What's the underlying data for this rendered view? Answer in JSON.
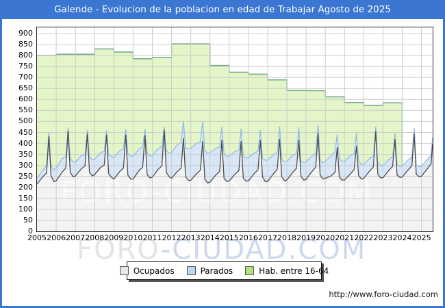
{
  "window": {
    "title": "Galende - Evolucion de la poblacion en edad de Trabajar Agosto de 2025"
  },
  "footer": {
    "url": "http://www.foro-ciudad.com"
  },
  "watermark": {
    "plot_text": "FORO-CIUDAD.COM",
    "footer_gray": "FORO",
    "footer_blue": "-CIUDAD.COM"
  },
  "colors": {
    "titlebar": "#3a76d2",
    "frame_border": "#3a76d2",
    "grid": "#cccccc",
    "plot_border": "#222222",
    "hab_fill": "#e4f6c8",
    "hab_line": "#6fa589",
    "parados_fill": "#d8e7f7",
    "parados_line": "#94bce4",
    "ocupados_fill": "#f3f3f3",
    "ocupados_line": "#4d4d4d",
    "swatch_ocupados": "#e8e8e8",
    "swatch_parados": "#bdd7f0",
    "swatch_hab": "#b2e27e"
  },
  "legend": {
    "items": [
      {
        "label": "Ocupados",
        "swatch": "#e8e8e8"
      },
      {
        "label": "Parados",
        "swatch": "#bdd7f0"
      },
      {
        "label": "Hab. entre 16-64",
        "swatch": "#b2e27e"
      }
    ]
  },
  "chart_data": {
    "type": "area",
    "title": "Galende - Evolucion de la poblacion en edad de Trabajar Agosto de 2025",
    "xlabel": "",
    "ylabel": "",
    "ylim": [
      0,
      925
    ],
    "ytick_step": 50,
    "y_ticks": [
      0,
      50,
      100,
      150,
      200,
      250,
      300,
      350,
      400,
      450,
      500,
      550,
      600,
      650,
      700,
      750,
      800,
      850,
      900
    ],
    "x_tick_years": [
      2005,
      2006,
      2007,
      2008,
      2009,
      2010,
      2011,
      2012,
      2013,
      2014,
      2015,
      2016,
      2017,
      2018,
      2019,
      2020,
      2021,
      2022,
      2023,
      2024,
      2025
    ],
    "x_min": 2005,
    "x_max": 2025.583,
    "grid": true,
    "legend_position": "bottom",
    "hab_16_64": {
      "name": "Hab. entre 16-64",
      "kind": "step-area-yearly",
      "end_x": 2024.0,
      "steps": [
        [
          2005,
          800
        ],
        [
          2006,
          806
        ],
        [
          2007,
          806
        ],
        [
          2008,
          830
        ],
        [
          2009,
          816
        ],
        [
          2010,
          785
        ],
        [
          2011,
          790
        ],
        [
          2012,
          853
        ],
        [
          2013,
          853
        ],
        [
          2014,
          755
        ],
        [
          2015,
          724
        ],
        [
          2016,
          715
        ],
        [
          2017,
          689
        ],
        [
          2018,
          641
        ],
        [
          2019,
          640
        ],
        [
          2020,
          612
        ],
        [
          2021,
          586
        ],
        [
          2022,
          573
        ],
        [
          2023,
          585
        ]
      ]
    },
    "x_monthly_anchors": [
      2005.0,
      2005.3,
      2005.5,
      2005.62,
      2005.73,
      2005.88,
      2006.0,
      2006.3,
      2006.5,
      2006.62,
      2006.73,
      2006.88,
      2007.0,
      2007.3,
      2007.5,
      2007.62,
      2007.73,
      2007.88,
      2008.0,
      2008.3,
      2008.5,
      2008.62,
      2008.73,
      2008.88,
      2009.0,
      2009.3,
      2009.5,
      2009.62,
      2009.73,
      2009.88,
      2010.0,
      2010.3,
      2010.5,
      2010.62,
      2010.73,
      2010.88,
      2011.0,
      2011.3,
      2011.5,
      2011.62,
      2011.73,
      2011.88,
      2012.0,
      2012.3,
      2012.5,
      2012.62,
      2012.73,
      2012.88,
      2013.0,
      2013.3,
      2013.5,
      2013.62,
      2013.73,
      2013.88,
      2014.0,
      2014.3,
      2014.5,
      2014.62,
      2014.73,
      2014.88,
      2015.0,
      2015.3,
      2015.5,
      2015.62,
      2015.73,
      2015.88,
      2016.0,
      2016.3,
      2016.5,
      2016.62,
      2016.73,
      2016.88,
      2017.0,
      2017.3,
      2017.5,
      2017.62,
      2017.73,
      2017.88,
      2018.0,
      2018.3,
      2018.5,
      2018.62,
      2018.73,
      2018.88,
      2019.0,
      2019.3,
      2019.5,
      2019.62,
      2019.73,
      2019.88,
      2020.0,
      2020.3,
      2020.5,
      2020.62,
      2020.73,
      2020.88,
      2021.0,
      2021.3,
      2021.5,
      2021.62,
      2021.73,
      2021.88,
      2022.0,
      2022.3,
      2022.5,
      2022.62,
      2022.73,
      2022.88,
      2023.0,
      2023.3,
      2023.5,
      2023.62,
      2023.73,
      2023.88,
      2024.0,
      2024.3,
      2024.5,
      2024.62,
      2024.73,
      2024.88,
      2025.0,
      2025.3,
      2025.5,
      2025.58
    ],
    "ocupados": {
      "name": "Ocupados",
      "values": [
        215,
        248,
        265,
        433,
        252,
        226,
        230,
        268,
        288,
        458,
        268,
        248,
        252,
        284,
        298,
        445,
        268,
        252,
        258,
        290,
        302,
        440,
        262,
        245,
        238,
        272,
        288,
        440,
        255,
        238,
        238,
        275,
        292,
        437,
        258,
        243,
        246,
        282,
        298,
        462,
        268,
        248,
        242,
        272,
        288,
        425,
        248,
        232,
        232,
        262,
        278,
        411,
        238,
        220,
        224,
        256,
        272,
        415,
        242,
        226,
        229,
        260,
        276,
        411,
        243,
        228,
        230,
        263,
        280,
        415,
        248,
        226,
        227,
        262,
        282,
        420,
        248,
        230,
        234,
        268,
        287,
        415,
        250,
        233,
        237,
        272,
        292,
        446,
        256,
        238,
        241,
        252,
        268,
        383,
        246,
        233,
        234,
        261,
        281,
        388,
        253,
        238,
        241,
        274,
        293,
        456,
        260,
        243,
        244,
        277,
        296,
        420,
        256,
        245,
        247,
        279,
        298,
        443,
        260,
        248,
        251,
        284,
        308,
        398
      ]
    },
    "parados": {
      "name": "Parados",
      "stacked_on": "ocupados",
      "values": [
        25,
        30,
        35,
        18,
        45,
        52,
        58,
        62,
        52,
        14,
        62,
        68,
        64,
        60,
        52,
        16,
        68,
        74,
        70,
        68,
        62,
        20,
        85,
        95,
        96,
        94,
        88,
        26,
        98,
        104,
        104,
        98,
        92,
        28,
        98,
        100,
        97,
        94,
        88,
        14,
        98,
        108,
        118,
        122,
        115,
        78,
        128,
        144,
        146,
        138,
        130,
        88,
        128,
        136,
        134,
        122,
        112,
        60,
        112,
        114,
        113,
        104,
        94,
        56,
        98,
        106,
        104,
        94,
        84,
        46,
        84,
        98,
        97,
        87,
        76,
        58,
        79,
        87,
        85,
        78,
        68,
        58,
        70,
        80,
        79,
        70,
        62,
        39,
        66,
        74,
        77,
        92,
        94,
        58,
        84,
        84,
        84,
        84,
        73,
        58,
        68,
        66,
        63,
        58,
        48,
        21,
        53,
        56,
        56,
        50,
        43,
        26,
        48,
        50,
        50,
        46,
        40,
        27,
        43,
        46,
        45,
        43,
        38,
        30
      ]
    }
  }
}
